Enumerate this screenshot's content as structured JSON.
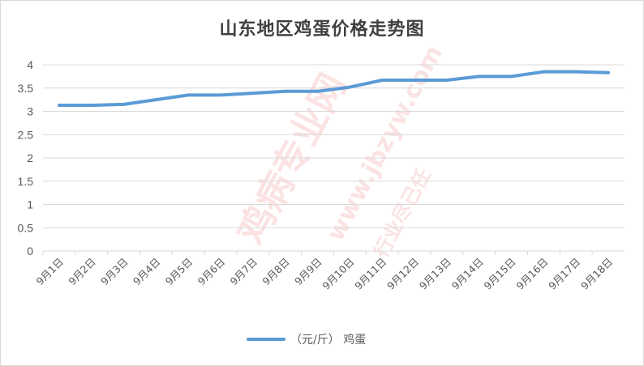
{
  "chart_data": {
    "type": "line",
    "title": "山东地区鸡蛋价格走势图",
    "categories": [
      "9月1日",
      "9月2日",
      "9月3日",
      "9月4日",
      "9月5日",
      "9月6日",
      "9月7日",
      "9月8日",
      "9月9日",
      "9月10日",
      "9月11日",
      "9月12日",
      "9月13日",
      "9月14日",
      "9月15日",
      "9月16日",
      "9月17日",
      "9月18日"
    ],
    "series": [
      {
        "name": "（元/斤） 鸡蛋",
        "values": [
          3.13,
          3.13,
          3.15,
          3.25,
          3.35,
          3.35,
          3.39,
          3.43,
          3.43,
          3.52,
          3.67,
          3.67,
          3.67,
          3.75,
          3.75,
          3.85,
          3.85,
          3.83
        ],
        "color": "#5b9bd5"
      }
    ],
    "ylim": [
      0,
      4
    ],
    "yticks": [
      "0",
      "0.5",
      "1",
      "1.5",
      "2",
      "2.5",
      "3",
      "3.5",
      "4"
    ],
    "ytick_values": [
      0,
      0.5,
      1,
      1.5,
      2,
      2.5,
      3,
      3.5,
      4
    ],
    "grid": true,
    "legend_position": "bottom",
    "xlabel": "",
    "ylabel": ""
  },
  "watermark": {
    "main": "鸡病专业网",
    "url": "www.jbzyw.com",
    "slogan": "行业尽己任"
  }
}
